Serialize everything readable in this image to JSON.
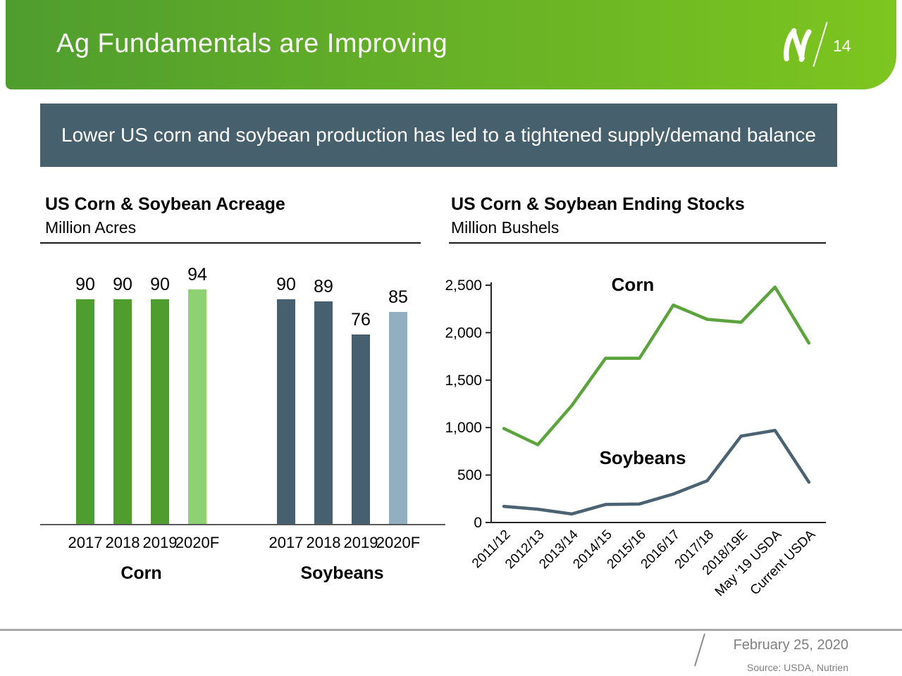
{
  "header": {
    "title": "Ag Fundamentals are Improving",
    "page_number": "14",
    "logo_icon": "nutrien-leaf-n-logo",
    "gradient_left": "#4f9d2e",
    "gradient_right": "#7dc51f"
  },
  "subtitle_banner": {
    "text": "Lower US corn and soybean production has led to a tightened supply/demand balance",
    "bg_color": "#47606e"
  },
  "charts": {
    "acreage": {
      "title": "US Corn & Soybean Acreage",
      "subtitle": "Million Acres"
    },
    "ending_stocks": {
      "title": "US Corn & Soybean Ending Stocks",
      "subtitle": "Million Bushels"
    }
  },
  "chart_data": [
    {
      "type": "bar",
      "title": "US Corn & Soybean Acreage",
      "ylabel": "Million Acres",
      "ylim": [
        0,
        105
      ],
      "grid": false,
      "data_labels": true,
      "groups": [
        {
          "name": "Corn",
          "categories": [
            "2017",
            "2018",
            "2019",
            "2020F"
          ],
          "values": [
            90,
            90,
            90,
            94
          ],
          "colors": [
            "#4f9d2e",
            "#4f9d2e",
            "#4f9d2e",
            "#8ed173"
          ]
        },
        {
          "name": "Soybeans",
          "categories": [
            "2017",
            "2018",
            "2019",
            "2020F"
          ],
          "values": [
            90,
            89,
            76,
            85
          ],
          "colors": [
            "#47606f",
            "#47606f",
            "#47606f",
            "#91afc1"
          ]
        }
      ]
    },
    {
      "type": "line",
      "title": "US Corn & Soybean Ending Stocks",
      "ylabel": "Million Bushels",
      "categories": [
        "2011/12",
        "2012/13",
        "2013/14",
        "2014/15",
        "2015/16",
        "2016/17",
        "2017/18",
        "2018/19E",
        "May '19 USDA",
        "Current USDA"
      ],
      "series": [
        {
          "name": "Corn",
          "color": "#5ba43d",
          "values": [
            990,
            820,
            1230,
            1730,
            1730,
            2290,
            2140,
            2110,
            2480,
            1890
          ]
        },
        {
          "name": "Soybeans",
          "color": "#4a6272",
          "values": [
            170,
            140,
            90,
            190,
            195,
            300,
            440,
            910,
            970,
            425
          ]
        }
      ],
      "yticks": [
        "0",
        "500",
        "1,000",
        "1,500",
        "2,000",
        "2,500"
      ],
      "ylim": [
        0,
        2500
      ],
      "grid": false,
      "legend": "inline-labels"
    }
  ],
  "footer": {
    "date": "February 25, 2020",
    "source": "Source: USDA, Nutrien"
  }
}
